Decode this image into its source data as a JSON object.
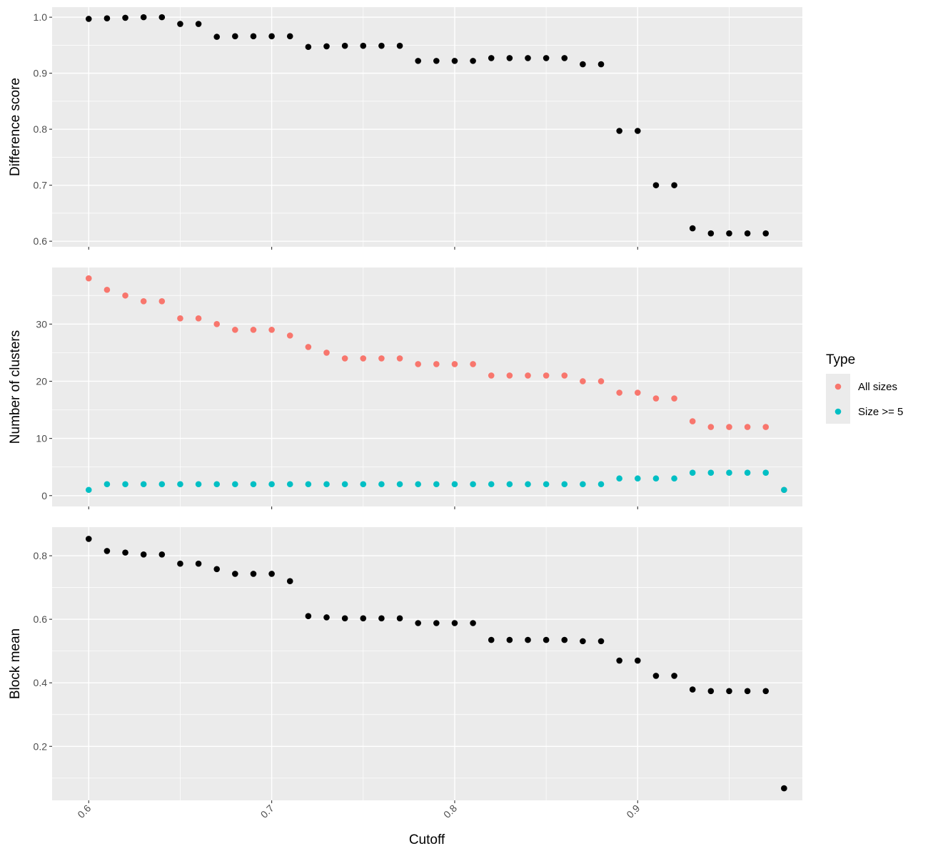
{
  "chart_data": {
    "type": "scatter",
    "x_label": "Cutoff",
    "x_range": [
      0.58,
      0.99
    ],
    "x_ticks": [
      0.6,
      0.7,
      0.8,
      0.9
    ],
    "x_tick_labels": [
      "0.6",
      "0.7",
      "0.8",
      "0.9"
    ],
    "panels": [
      {
        "ylabel": "Difference score",
        "ylim": [
          0.59,
          1.018
        ],
        "y_ticks": [
          0.6,
          0.7,
          0.8,
          0.9,
          1.0
        ],
        "y_tick_labels": [
          "0.6",
          "0.7",
          "0.8",
          "0.9",
          "1.0"
        ],
        "series": [
          {
            "color": "#000000",
            "x": [
              0.6,
              0.61,
              0.62,
              0.63,
              0.64,
              0.65,
              0.66,
              0.67,
              0.68,
              0.69,
              0.7,
              0.71,
              0.72,
              0.73,
              0.74,
              0.75,
              0.76,
              0.77,
              0.78,
              0.79,
              0.8,
              0.81,
              0.82,
              0.83,
              0.84,
              0.85,
              0.86,
              0.87,
              0.88,
              0.89,
              0.9,
              0.91,
              0.92,
              0.93,
              0.94,
              0.95,
              0.96,
              0.97
            ],
            "y": [
              0.997,
              0.998,
              0.999,
              1.0,
              1.0,
              0.988,
              0.988,
              0.965,
              0.966,
              0.966,
              0.966,
              0.966,
              0.947,
              0.948,
              0.949,
              0.949,
              0.949,
              0.949,
              0.922,
              0.922,
              0.922,
              0.922,
              0.927,
              0.927,
              0.927,
              0.927,
              0.927,
              0.916,
              0.916,
              0.797,
              0.797,
              0.7,
              0.7,
              0.623,
              0.614,
              0.614,
              0.614,
              0.614
            ]
          }
        ]
      },
      {
        "ylabel": "Number of clusters",
        "ylim": [
          -1.9,
          39.9
        ],
        "y_ticks": [
          0,
          10,
          20,
          30
        ],
        "y_tick_labels": [
          "0",
          "10",
          "20",
          "30"
        ],
        "series": [
          {
            "name": "All sizes",
            "color": "#F8766D",
            "x": [
              0.6,
              0.61,
              0.62,
              0.63,
              0.64,
              0.65,
              0.66,
              0.67,
              0.68,
              0.69,
              0.7,
              0.71,
              0.72,
              0.73,
              0.74,
              0.75,
              0.76,
              0.77,
              0.78,
              0.79,
              0.8,
              0.81,
              0.82,
              0.83,
              0.84,
              0.85,
              0.86,
              0.87,
              0.88,
              0.89,
              0.9,
              0.91,
              0.92,
              0.93,
              0.94,
              0.95,
              0.96,
              0.97,
              0.98
            ],
            "y": [
              38,
              36,
              35,
              34,
              34,
              31,
              31,
              30,
              29,
              29,
              29,
              28,
              26,
              25,
              24,
              24,
              24,
              24,
              23,
              23,
              23,
              23,
              21,
              21,
              21,
              21,
              21,
              20,
              20,
              18,
              18,
              17,
              17,
              13,
              12,
              12,
              12,
              12,
              1
            ]
          },
          {
            "name": "Size >= 5",
            "color": "#00BFC4",
            "x": [
              0.6,
              0.61,
              0.62,
              0.63,
              0.64,
              0.65,
              0.66,
              0.67,
              0.68,
              0.69,
              0.7,
              0.71,
              0.72,
              0.73,
              0.74,
              0.75,
              0.76,
              0.77,
              0.78,
              0.79,
              0.8,
              0.81,
              0.82,
              0.83,
              0.84,
              0.85,
              0.86,
              0.87,
              0.88,
              0.89,
              0.9,
              0.91,
              0.92,
              0.93,
              0.94,
              0.95,
              0.96,
              0.97,
              0.98
            ],
            "y": [
              1,
              2,
              2,
              2,
              2,
              2,
              2,
              2,
              2,
              2,
              2,
              2,
              2,
              2,
              2,
              2,
              2,
              2,
              2,
              2,
              2,
              2,
              2,
              2,
              2,
              2,
              2,
              2,
              2,
              3,
              3,
              3,
              3,
              4,
              4,
              4,
              4,
              4,
              1
            ]
          }
        ]
      },
      {
        "ylabel": "Block mean",
        "ylim": [
          0.03,
          0.89
        ],
        "y_ticks": [
          0.2,
          0.4,
          0.6,
          0.8
        ],
        "y_tick_labels": [
          "0.2",
          "0.4",
          "0.6",
          "0.8"
        ],
        "series": [
          {
            "color": "#000000",
            "x": [
              0.6,
              0.61,
              0.62,
              0.63,
              0.64,
              0.65,
              0.66,
              0.67,
              0.68,
              0.69,
              0.7,
              0.71,
              0.72,
              0.73,
              0.74,
              0.75,
              0.76,
              0.77,
              0.78,
              0.79,
              0.8,
              0.81,
              0.82,
              0.83,
              0.84,
              0.85,
              0.86,
              0.87,
              0.88,
              0.89,
              0.9,
              0.91,
              0.92,
              0.93,
              0.94,
              0.95,
              0.96,
              0.97,
              0.98
            ],
            "y": [
              0.853,
              0.815,
              0.81,
              0.804,
              0.804,
              0.775,
              0.775,
              0.758,
              0.743,
              0.743,
              0.743,
              0.72,
              0.61,
              0.606,
              0.603,
              0.603,
              0.603,
              0.603,
              0.588,
              0.588,
              0.588,
              0.588,
              0.535,
              0.535,
              0.535,
              0.535,
              0.535,
              0.531,
              0.531,
              0.47,
              0.47,
              0.422,
              0.422,
              0.379,
              0.374,
              0.374,
              0.374,
              0.374,
              0.068
            ]
          }
        ]
      }
    ],
    "legend": {
      "title": "Type",
      "position": "right",
      "entries": [
        {
          "label": "All sizes",
          "color": "#F8766D"
        },
        {
          "label": "Size >= 5",
          "color": "#00BFC4"
        }
      ]
    },
    "grid": true,
    "panel_background": "#EBEBEB",
    "grid_color": "#FFFFFF"
  }
}
